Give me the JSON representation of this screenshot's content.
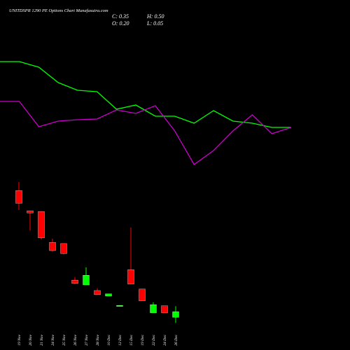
{
  "header": {
    "title": "UNITDSPR 1290 PE Options Chart Munafasutra.com",
    "close": "C: 0.35",
    "high": "H: 0.50",
    "open": "O: 0.20",
    "low": "L: 0.05"
  },
  "chart_data": [
    {
      "type": "line",
      "ylim": [
        0,
        200
      ],
      "series": [
        {
          "color": "#00ff00",
          "values": [
            162,
            162,
            154,
            132,
            121,
            119,
            94,
            100,
            84,
            84,
            74,
            92,
            77,
            74,
            68,
            68
          ]
        },
        {
          "color": "#cc00cc",
          "values": [
            105,
            105,
            69,
            77,
            79,
            80,
            93,
            88,
            99,
            63,
            15,
            35,
            63,
            86,
            59,
            68
          ]
        }
      ]
    },
    {
      "type": "candlestick",
      "ylim": [
        0,
        4
      ],
      "up_color": "#00ff00",
      "down_color": "#ff0000",
      "categories": [
        "19 Nov",
        "20 Nov",
        "21 Nov",
        "24 Nov",
        "25 Nov",
        "26 Nov",
        "27 Nov",
        "28 Nov",
        "10 Dec",
        "12 Dec",
        "15 Dec",
        "19 Dec",
        "22 Dec",
        "24 Dec",
        "26 Dec"
      ],
      "open": [
        3.6,
        3.06,
        3.04,
        2.21,
        2.18,
        1.2,
        1.07,
        0.92,
        0.77,
        0.5,
        1.48,
        0.96,
        0.32,
        0.51,
        0.2
      ],
      "high": [
        3.83,
        3.06,
        3.04,
        2.31,
        2.18,
        1.28,
        1.54,
        0.98,
        0.83,
        0.52,
        2.61,
        0.96,
        0.6,
        0.51,
        0.5
      ],
      "low": [
        3.08,
        2.53,
        2.29,
        1.97,
        1.89,
        1.09,
        1.07,
        0.81,
        0.77,
        0.5,
        1.09,
        0.64,
        0.32,
        0.32,
        0.05
      ],
      "close": [
        3.26,
        3.0,
        2.33,
        1.99,
        1.91,
        1.11,
        1.33,
        0.81,
        0.83,
        0.52,
        1.09,
        0.64,
        0.54,
        0.32,
        0.35
      ]
    }
  ]
}
